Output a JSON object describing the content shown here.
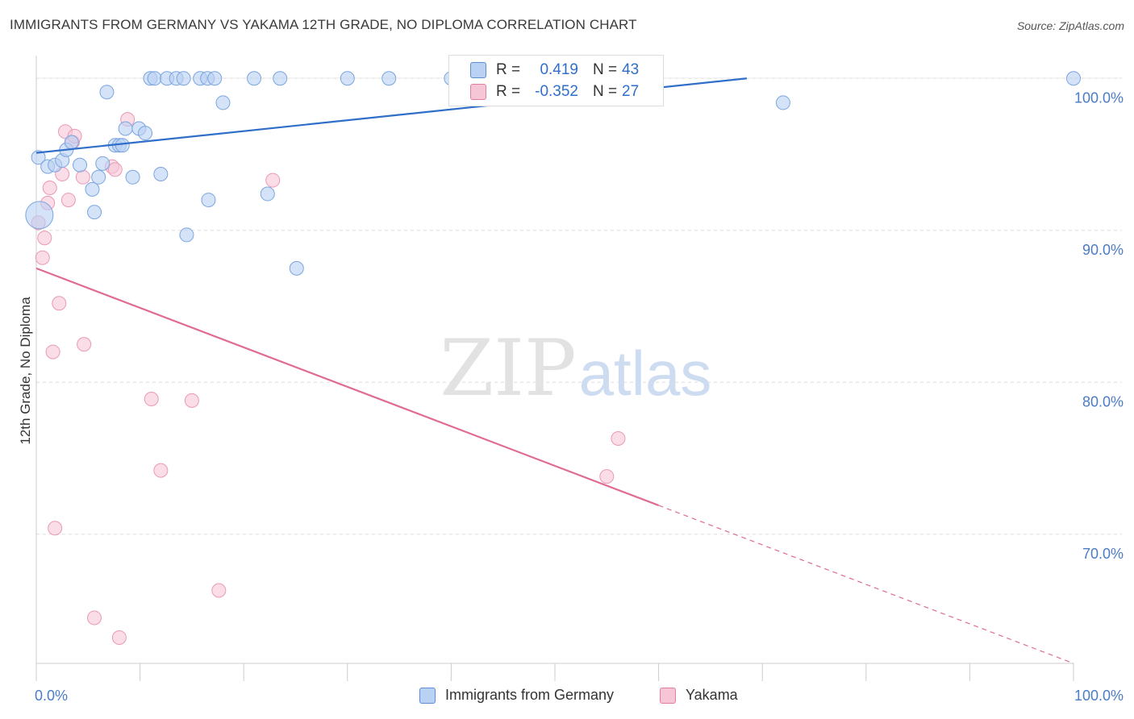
{
  "header": {
    "title": "IMMIGRANTS FROM GERMANY VS YAKAMA 12TH GRADE, NO DIPLOMA CORRELATION CHART",
    "source": "Source: ZipAtlas.com"
  },
  "watermark": {
    "zip": "ZIP",
    "atlas": "atlas"
  },
  "stats": [
    {
      "r_label": "R =",
      "r_value": "0.419",
      "n_label": "N =",
      "n_value": "43",
      "color": "#5b8fd6",
      "fill": "#b9d1f3"
    },
    {
      "r_label": "R =",
      "r_value": "-0.352",
      "n_label": "N =",
      "n_value": "27",
      "color": "#e07fa0",
      "fill": "#f7c6d6"
    }
  ],
  "colors": {
    "blue_fill": "#b9d1f3",
    "blue_stroke": "#7aa5df",
    "blue_line": "#2f6fc9",
    "pink_fill": "#f7c6d6",
    "pink_stroke": "#e99ab5",
    "pink_line": "#e06b93",
    "axis_text": "#4a7cc7",
    "grid": "#dddddd"
  },
  "chart_data": {
    "type": "scatter",
    "title": "IMMIGRANTS FROM GERMANY VS YAKAMA 12TH GRADE, NO DIPLOMA CORRELATION CHART",
    "xlabel": "",
    "ylabel": "12th Grade, No Diploma",
    "xlim": [
      0,
      100
    ],
    "ylim": [
      61.5,
      101.5
    ],
    "x_tick_labels": [
      "0.0%",
      "100.0%"
    ],
    "y_ticks": [
      70,
      80,
      90,
      100
    ],
    "y_tick_labels": [
      "70.0%",
      "80.0%",
      "90.0%",
      "100.0%"
    ],
    "grid": true,
    "legend_position": "bottom",
    "series": [
      {
        "name": "Immigrants from Germany",
        "color": "#b9d1f3",
        "r": 0.419,
        "n": 43,
        "trend": {
          "x": [
            0,
            68.5
          ],
          "y": [
            95.1,
            100.0
          ],
          "dashed_from": null
        },
        "points": [
          [
            0.3,
            91.0
          ],
          [
            0.2,
            94.8
          ],
          [
            1.1,
            94.2
          ],
          [
            1.8,
            94.3
          ],
          [
            2.5,
            94.6
          ],
          [
            2.9,
            95.3
          ],
          [
            3.4,
            95.8
          ],
          [
            4.2,
            94.3
          ],
          [
            5.4,
            92.7
          ],
          [
            5.6,
            91.2
          ],
          [
            6.0,
            93.5
          ],
          [
            6.4,
            94.4
          ],
          [
            6.8,
            99.1
          ],
          [
            7.6,
            95.6
          ],
          [
            8.0,
            95.6
          ],
          [
            8.3,
            95.6
          ],
          [
            8.6,
            96.7
          ],
          [
            9.3,
            93.5
          ],
          [
            9.9,
            96.7
          ],
          [
            10.5,
            96.4
          ],
          [
            11.0,
            100.0
          ],
          [
            11.4,
            100.0
          ],
          [
            12.0,
            93.7
          ],
          [
            12.6,
            100.0
          ],
          [
            13.5,
            100.0
          ],
          [
            14.2,
            100.0
          ],
          [
            14.5,
            89.7
          ],
          [
            15.8,
            100.0
          ],
          [
            16.5,
            100.0
          ],
          [
            16.6,
            92.0
          ],
          [
            17.2,
            100.0
          ],
          [
            18.0,
            98.4
          ],
          [
            21.0,
            100.0
          ],
          [
            22.3,
            92.4
          ],
          [
            23.5,
            100.0
          ],
          [
            25.1,
            87.5
          ],
          [
            30.0,
            100.0
          ],
          [
            34.0,
            100.0
          ],
          [
            40.0,
            100.0
          ],
          [
            47.5,
            100.0
          ],
          [
            50.0,
            100.0
          ],
          [
            72.0,
            98.4
          ],
          [
            100.0,
            100.0
          ]
        ]
      },
      {
        "name": "Yakama",
        "color": "#f7c6d6",
        "r": -0.352,
        "n": 27,
        "trend": {
          "x": [
            0,
            100
          ],
          "y": [
            87.5,
            61.5
          ],
          "dashed_from": 60
        },
        "points": [
          [
            0.2,
            90.5
          ],
          [
            0.6,
            88.2
          ],
          [
            0.8,
            89.5
          ],
          [
            1.1,
            91.8
          ],
          [
            1.3,
            92.8
          ],
          [
            1.6,
            82.0
          ],
          [
            1.8,
            70.4
          ],
          [
            2.2,
            85.2
          ],
          [
            2.5,
            93.7
          ],
          [
            2.8,
            96.5
          ],
          [
            3.1,
            92.0
          ],
          [
            3.5,
            95.8
          ],
          [
            3.7,
            96.2
          ],
          [
            4.5,
            93.5
          ],
          [
            4.6,
            82.5
          ],
          [
            5.6,
            64.5
          ],
          [
            7.3,
            94.2
          ],
          [
            7.6,
            94.0
          ],
          [
            8.0,
            63.2
          ],
          [
            8.8,
            97.3
          ],
          [
            11.1,
            78.9
          ],
          [
            12.0,
            74.2
          ],
          [
            15.0,
            78.8
          ],
          [
            17.6,
            66.3
          ],
          [
            22.8,
            93.3
          ],
          [
            55.0,
            73.8
          ],
          [
            56.1,
            76.3
          ]
        ]
      }
    ]
  },
  "legend": {
    "items": [
      {
        "label": "Immigrants from Germany",
        "color": "#b9d1f3"
      },
      {
        "label": "Yakama",
        "color": "#f7c6d6"
      }
    ]
  }
}
